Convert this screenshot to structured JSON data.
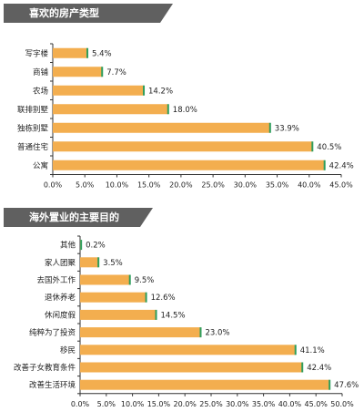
{
  "charts": [
    {
      "title": "喜欢的房产类型",
      "chart_data": {
        "type": "bar",
        "orientation": "horizontal",
        "title": "喜欢的房产类型",
        "categories": [
          "写字楼",
          "商铺",
          "农场",
          "联排别墅",
          "独栋别墅",
          "普通住宅",
          "公寓"
        ],
        "values": [
          5.4,
          7.7,
          14.2,
          18.0,
          33.9,
          40.5,
          42.4
        ],
        "value_labels": [
          "5.4%",
          "7.7%",
          "14.2%",
          "18.0%",
          "33.9%",
          "40.5%",
          "42.4%"
        ],
        "xlim": [
          0,
          45
        ],
        "ticks": [
          0,
          5,
          10,
          15,
          20,
          25,
          30,
          35,
          40,
          45
        ],
        "tick_labels": [
          "0.0%",
          "5.0%",
          "10.0%",
          "15.0%",
          "20.0%",
          "25.0%",
          "30.0%",
          "35.0%",
          "40.0%",
          "45.0%"
        ],
        "bar_color": "#F3AE4F",
        "grid": false
      }
    },
    {
      "title": "海外置业的主要目的",
      "chart_data": {
        "type": "bar",
        "orientation": "horizontal",
        "title": "海外置业的主要目的",
        "categories": [
          "其他",
          "家人团聚",
          "去国外工作",
          "退休养老",
          "休闲度假",
          "纯粹为了投资",
          "移民",
          "改善子女教育条件",
          "改善生活环境"
        ],
        "values": [
          0.2,
          3.5,
          9.5,
          12.6,
          14.5,
          23.0,
          41.1,
          42.4,
          47.6
        ],
        "value_labels": [
          "0.2%",
          "3.5%",
          "9.5%",
          "12.6%",
          "14.5%",
          "23.0%",
          "41.1%",
          "42.4%",
          "47.6%"
        ],
        "xlim": [
          0,
          50
        ],
        "ticks": [
          0,
          5,
          10,
          15,
          20,
          25,
          30,
          35,
          40,
          45,
          50
        ],
        "tick_labels": [
          "0.0%",
          "5.0%",
          "10.0%",
          "15.0%",
          "20.0%",
          "25.0%",
          "30.0%",
          "35.0%",
          "40.0%",
          "45.0%",
          "50.0%"
        ],
        "bar_color": "#F3AE4F",
        "grid": false
      }
    }
  ]
}
